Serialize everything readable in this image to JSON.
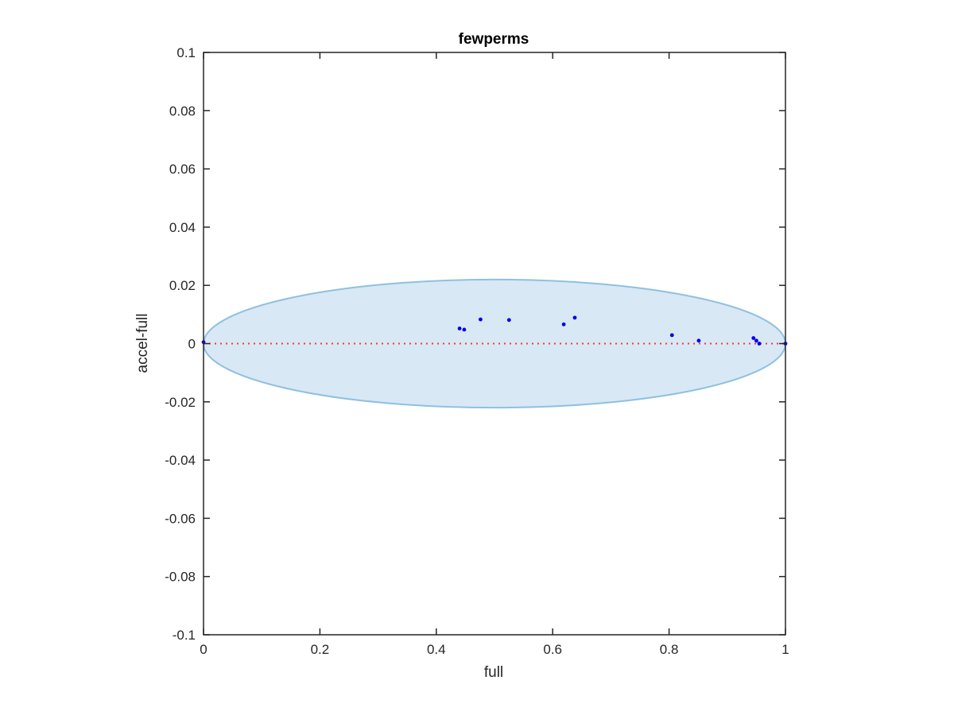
{
  "chart_data": {
    "type": "scatter",
    "title": "fewperms",
    "xlabel": "full",
    "ylabel": "accel-full",
    "xlim": [
      0,
      1
    ],
    "ylim": [
      -0.1,
      0.1
    ],
    "xticks": [
      0,
      0.2,
      0.4,
      0.6,
      0.8,
      1
    ],
    "xtick_labels": [
      "0",
      "0.2",
      "0.4",
      "0.6",
      "0.8",
      "1"
    ],
    "yticks": [
      -0.1,
      -0.08,
      -0.06,
      -0.04,
      -0.02,
      0,
      0.02,
      0.04,
      0.06,
      0.08,
      0.1
    ],
    "ytick_labels": [
      "-0.1",
      "-0.08",
      "-0.06",
      "-0.04",
      "-0.02",
      "0",
      "0.02",
      "0.04",
      "0.06",
      "0.08",
      "0.1"
    ],
    "grid": false,
    "points": {
      "x": [
        0,
        0.44,
        0.448,
        0.476,
        0.525,
        0.619,
        0.638,
        0.805,
        0.851,
        0.945,
        0.95,
        0.955,
        1.0
      ],
      "y": [
        0.0005,
        0.0052,
        0.0048,
        0.0083,
        0.0081,
        0.0066,
        0.0089,
        0.0029,
        0.001,
        0.0019,
        0.001,
        0.0,
        0.0
      ],
      "color": "#0000ee"
    },
    "reference_line": {
      "y": 0,
      "style": "dotted",
      "color": "#ff3333"
    },
    "ellipse": {
      "center": [
        0.5,
        0
      ],
      "semi_axis_x": 0.5,
      "semi_axis_y": 0.022,
      "fill": "#d8e8f5",
      "stroke": "#8fc0e0"
    },
    "colors": {
      "axes": "#262626",
      "points": "#0000ee",
      "reference": "#ff3333",
      "ellipse_fill": "#d8e8f5",
      "ellipse_stroke": "#8fc0e0"
    }
  }
}
